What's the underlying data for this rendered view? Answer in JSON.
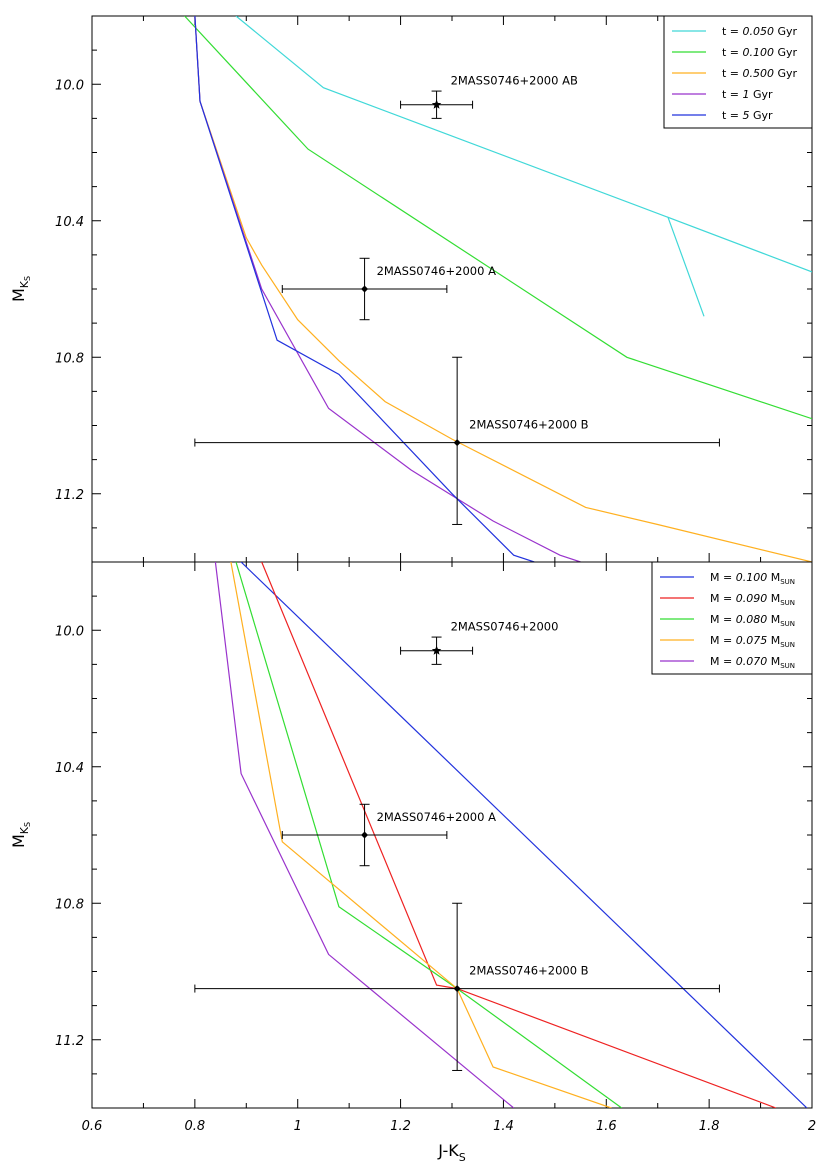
{
  "chart_data": [
    {
      "type": "line",
      "panel": "top",
      "xlabel": "J-K",
      "xlabel_sub": "S",
      "ylabel": "M",
      "ylabel_sub": "K",
      "ylabel_subsub": "S",
      "xlim": [
        0.6,
        2.0
      ],
      "ylim": [
        11.4,
        9.8
      ],
      "y_ticks": [
        10.0,
        10.4,
        10.8,
        11.2
      ],
      "y_tick_labels": [
        "10.0",
        "10.4",
        "10.8",
        "11.2"
      ],
      "legend_position": "top-right",
      "series": [
        {
          "name": "t = 0.050 Gyr",
          "label_prefix": "t = ",
          "label_value": "0.050",
          "label_unit": " Gyr",
          "color": "#40d8d8",
          "x": [
            0.88,
            1.05,
            1.72,
            1.79,
            1.72,
            2.0
          ],
          "y": [
            9.8,
            10.01,
            10.39,
            10.68,
            10.39,
            10.55
          ]
        },
        {
          "name": "t = 0.100 Gyr",
          "label_prefix": "t = ",
          "label_value": "0.100",
          "label_unit": " Gyr",
          "color": "#33dd33",
          "x": [
            0.78,
            1.02,
            1.64,
            2.0
          ],
          "y": [
            9.8,
            10.19,
            10.8,
            10.98
          ]
        },
        {
          "name": "t = 0.500 Gyr",
          "label_prefix": "t = ",
          "label_value": "0.500",
          "label_unit": " Gyr",
          "color": "#ffb020",
          "x": [
            0.8,
            0.81,
            0.9,
            0.93,
            1.0,
            1.08,
            1.17,
            1.3,
            1.56,
            1.7,
            2.0
          ],
          "y": [
            9.8,
            10.05,
            10.45,
            10.53,
            10.69,
            10.81,
            10.93,
            11.04,
            11.24,
            11.29,
            11.4
          ]
        },
        {
          "name": "t = 1 Gyr",
          "label_prefix": "t = ",
          "label_value": "1",
          "label_unit": " Gyr",
          "color": "#9933cc",
          "x": [
            0.8,
            0.81,
            0.93,
            1.06,
            1.22,
            1.38,
            1.51,
            1.55
          ],
          "y": [
            9.8,
            10.05,
            10.6,
            10.95,
            11.13,
            11.28,
            11.38,
            11.4
          ]
        },
        {
          "name": "t = 5 Gyr",
          "label_prefix": "t = ",
          "label_value": "5",
          "label_unit": " Gyr",
          "color": "#2233dd",
          "x": [
            0.8,
            0.81,
            0.96,
            1.08,
            1.3,
            1.42,
            1.46
          ],
          "y": [
            9.8,
            10.05,
            10.75,
            10.85,
            11.2,
            11.38,
            11.4
          ]
        }
      ],
      "points": [
        {
          "label": "2MASS0746+2000 AB",
          "marker": "star",
          "x": 1.27,
          "y": 10.06,
          "xerr": [
            1.2,
            1.34
          ],
          "yerr": [
            10.02,
            10.1
          ]
        },
        {
          "label": "2MASS0746+2000 A",
          "marker": "diamond",
          "x": 1.13,
          "y": 10.6,
          "xerr": [
            0.97,
            1.29
          ],
          "yerr": [
            10.51,
            10.69
          ]
        },
        {
          "label": "2MASS0746+2000 B",
          "marker": "diamond",
          "x": 1.31,
          "y": 11.05,
          "xerr": [
            0.8,
            1.82
          ],
          "yerr": [
            10.8,
            11.29
          ]
        }
      ]
    },
    {
      "type": "line",
      "panel": "bottom",
      "xlabel": "J-K",
      "xlabel_sub": "S",
      "ylabel": "M",
      "ylabel_sub": "K",
      "ylabel_subsub": "S",
      "xlim": [
        0.6,
        2.0
      ],
      "ylim": [
        11.4,
        9.8
      ],
      "x_ticks": [
        0.6,
        0.8,
        1.0,
        1.2,
        1.4,
        1.6,
        1.8,
        2.0
      ],
      "x_tick_labels": [
        "0.6",
        "0.8",
        "1",
        "1.2",
        "1.4",
        "1.6",
        "1.8",
        "2"
      ],
      "y_ticks": [
        10.0,
        10.4,
        10.8,
        11.2
      ],
      "y_tick_labels": [
        "10.0",
        "10.4",
        "10.8",
        "11.2"
      ],
      "legend_position": "top-right",
      "series": [
        {
          "name": "M = 0.100 M_SUN",
          "label_prefix": "M = ",
          "label_value": "0.100",
          "label_unit": " M",
          "label_sub": "SUN",
          "color": "#2233dd",
          "x": [
            0.89,
            1.99
          ],
          "y": [
            9.8,
            11.4
          ]
        },
        {
          "name": "M = 0.090 M_SUN",
          "label_prefix": "M = ",
          "label_value": "0.090",
          "label_unit": " M",
          "label_sub": "SUN",
          "color": "#ee2222",
          "x": [
            0.93,
            1.27,
            1.31,
            1.93
          ],
          "y": [
            9.8,
            11.04,
            11.05,
            11.4
          ]
        },
        {
          "name": "M = 0.080 M_SUN",
          "label_prefix": "M = ",
          "label_value": "0.080",
          "label_unit": " M",
          "label_sub": "SUN",
          "color": "#33dd33",
          "x": [
            0.88,
            1.08,
            1.31,
            1.63
          ],
          "y": [
            9.8,
            10.81,
            11.05,
            11.4
          ]
        },
        {
          "name": "M = 0.075 M_SUN",
          "label_prefix": "M = ",
          "label_value": "0.075",
          "label_unit": " M",
          "label_sub": "SUN",
          "color": "#ffb020",
          "x": [
            0.87,
            0.97,
            1.31,
            1.38,
            1.61
          ],
          "y": [
            9.8,
            10.62,
            11.05,
            11.28,
            11.4
          ]
        },
        {
          "name": "M = 0.070 M_SUN",
          "label_prefix": "M = ",
          "label_value": "0.070",
          "label_unit": " M",
          "label_sub": "SUN",
          "color": "#9933cc",
          "x": [
            0.84,
            0.89,
            1.06,
            1.42
          ],
          "y": [
            9.8,
            10.42,
            10.95,
            11.4
          ]
        }
      ],
      "points": [
        {
          "label": "2MASS0746+2000",
          "marker": "star",
          "x": 1.27,
          "y": 10.06,
          "xerr": [
            1.2,
            1.34
          ],
          "yerr": [
            10.02,
            10.1
          ]
        },
        {
          "label": "2MASS0746+2000 A",
          "marker": "diamond",
          "x": 1.13,
          "y": 10.6,
          "xerr": [
            0.97,
            1.29
          ],
          "yerr": [
            10.51,
            10.69
          ]
        },
        {
          "label": "2MASS0746+2000 B",
          "marker": "diamond",
          "x": 1.31,
          "y": 11.05,
          "xerr": [
            0.8,
            1.82
          ],
          "yerr": [
            10.8,
            11.29
          ]
        }
      ]
    }
  ]
}
